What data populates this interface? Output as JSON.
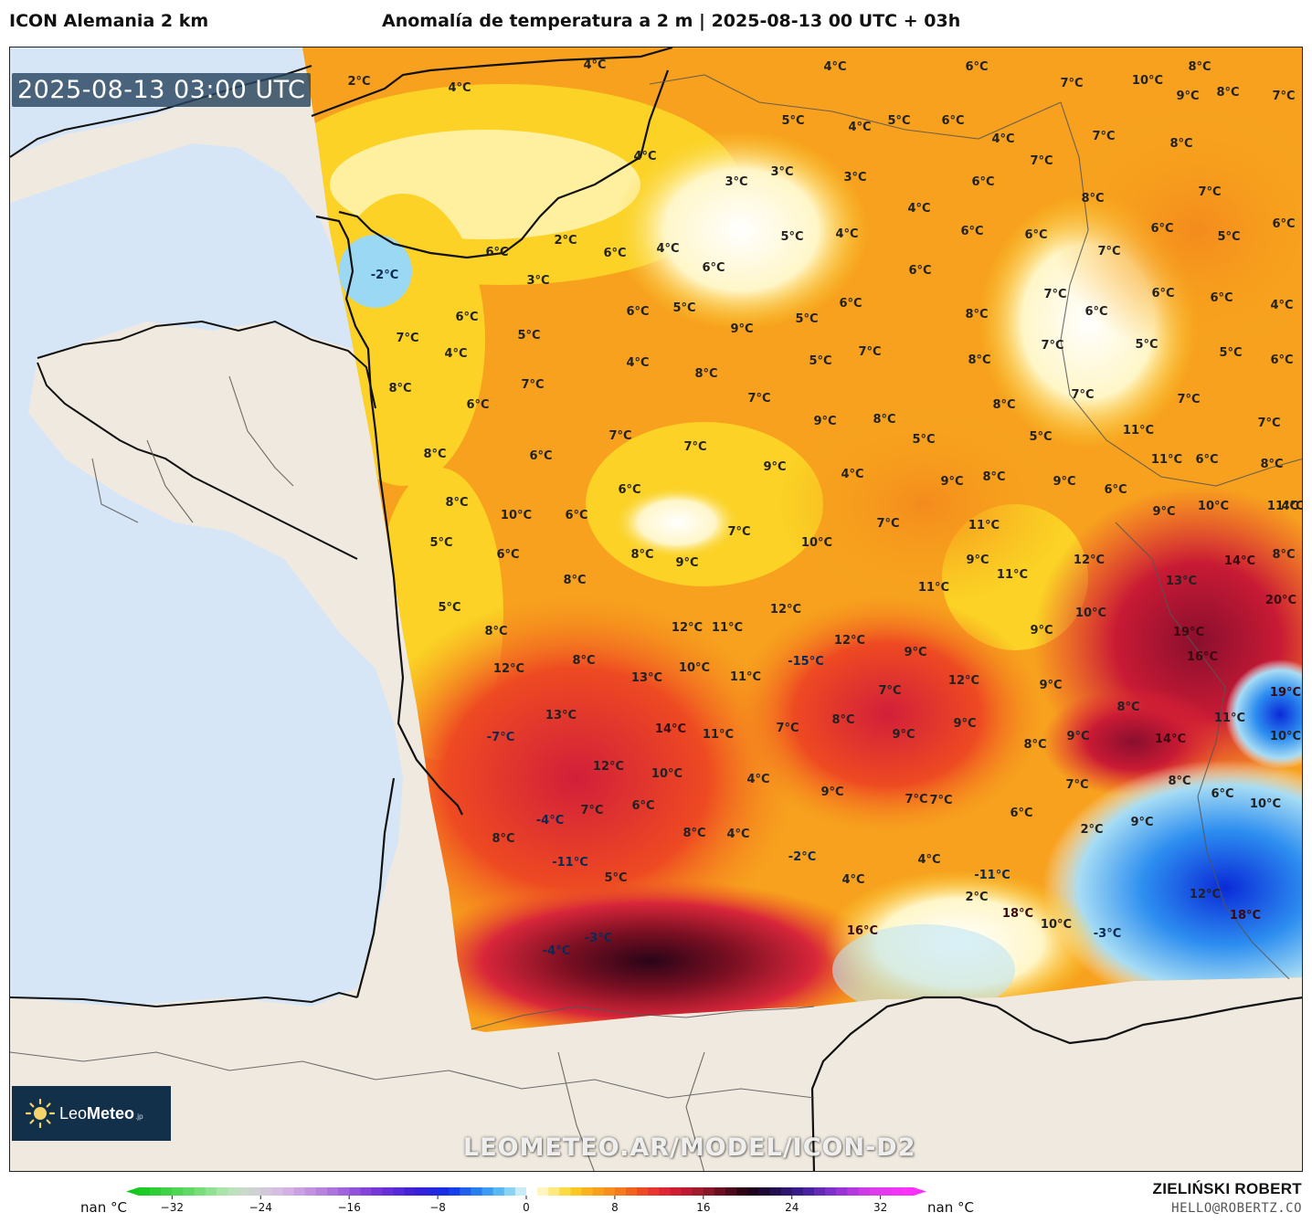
{
  "header": {
    "model_name": "ICON Alemania 2 km",
    "title": "Anomalía de temperatura a 2 m | 2025-08-13 00 UTC + 03h"
  },
  "map": {
    "valid_time": "2025-08-13 03:00 UTC",
    "watermark": "LEOMETEO.AR/MODEL/ICON-D2",
    "colors": {
      "sea": "#d6e6f7",
      "land_outside": "#efe9df",
      "coast": "#111111",
      "border": "#555555"
    },
    "labels": [
      {
        "text": "4°C",
        "t": 4
      },
      {
        "text": "4°C",
        "t": 4
      },
      {
        "text": "2°C",
        "t": 2
      },
      {
        "text": "4°C",
        "t": 4
      },
      {
        "text": "6°C",
        "t": 6
      },
      {
        "text": "8°C",
        "t": 8
      },
      {
        "text": "7°C",
        "t": 7
      },
      {
        "text": "10°C",
        "t": 10
      },
      {
        "text": "9°C",
        "t": 9
      },
      {
        "text": "8°C",
        "t": 8
      },
      {
        "text": "7°C",
        "t": 7
      },
      {
        "text": "5°C",
        "t": 5
      },
      {
        "text": "5°C",
        "t": 5
      },
      {
        "text": "4°C",
        "t": 4
      },
      {
        "text": "6°C",
        "t": 6
      },
      {
        "text": "4°C",
        "t": 4
      },
      {
        "text": "7°C",
        "t": 7
      },
      {
        "text": "8°C",
        "t": 8
      },
      {
        "text": "7°C",
        "t": 7
      },
      {
        "text": "4°C",
        "t": 4
      },
      {
        "text": "3°C",
        "t": 3
      },
      {
        "text": "3°C",
        "t": 3
      },
      {
        "text": "3°C",
        "t": 3
      },
      {
        "text": "6°C",
        "t": 6
      },
      {
        "text": "4°C",
        "t": 4
      },
      {
        "text": "8°C",
        "t": 8
      },
      {
        "text": "7°C",
        "t": 7
      },
      {
        "text": "6°C",
        "t": 6
      },
      {
        "text": "6°C",
        "t": 6
      },
      {
        "text": "-2°C",
        "t": -2
      },
      {
        "text": "6°C",
        "t": 6
      },
      {
        "text": "2°C",
        "t": 2
      },
      {
        "text": "3°C",
        "t": 3
      },
      {
        "text": "6°C",
        "t": 6
      },
      {
        "text": "4°C",
        "t": 4
      },
      {
        "text": "6°C",
        "t": 6
      },
      {
        "text": "5°C",
        "t": 5
      },
      {
        "text": "4°C",
        "t": 4
      },
      {
        "text": "6°C",
        "t": 6
      },
      {
        "text": "6°C",
        "t": 6
      },
      {
        "text": "6°C",
        "t": 6
      },
      {
        "text": "5°C",
        "t": 5
      },
      {
        "text": "7°C",
        "t": 7
      },
      {
        "text": "6°C",
        "t": 6
      },
      {
        "text": "5°C",
        "t": 5
      },
      {
        "text": "6°C",
        "t": 6
      },
      {
        "text": "9°C",
        "t": 9
      },
      {
        "text": "5°C",
        "t": 5
      },
      {
        "text": "6°C",
        "t": 6
      },
      {
        "text": "5°C",
        "t": 5
      },
      {
        "text": "7°C",
        "t": 7
      },
      {
        "text": "7°C",
        "t": 7
      },
      {
        "text": "6°C",
        "t": 6
      },
      {
        "text": "6°C",
        "t": 6
      },
      {
        "text": "4°C",
        "t": 4
      },
      {
        "text": "8°C",
        "t": 8
      },
      {
        "text": "6°C",
        "t": 6
      },
      {
        "text": "5°C",
        "t": 5
      },
      {
        "text": "7°C",
        "t": 7
      },
      {
        "text": "4°C",
        "t": 4
      },
      {
        "text": "5°C",
        "t": 5
      },
      {
        "text": "8°C",
        "t": 8
      },
      {
        "text": "8°C",
        "t": 8
      },
      {
        "text": "7°C",
        "t": 7
      },
      {
        "text": "5°C",
        "t": 5
      },
      {
        "text": "7°C",
        "t": 7
      },
      {
        "text": "4°C",
        "t": 4
      },
      {
        "text": "6°C",
        "t": 6
      },
      {
        "text": "8°C",
        "t": 8
      },
      {
        "text": "7°C",
        "t": 7
      },
      {
        "text": "7°C",
        "t": 7
      },
      {
        "text": "7°C",
        "t": 7
      },
      {
        "text": "6°C",
        "t": 6
      },
      {
        "text": "8°C",
        "t": 8
      },
      {
        "text": "9°C",
        "t": 9
      },
      {
        "text": "8°C",
        "t": 8
      },
      {
        "text": "7°C",
        "t": 7
      },
      {
        "text": "11°C",
        "t": 11
      },
      {
        "text": "5°C",
        "t": 5
      },
      {
        "text": "8°C",
        "t": 8
      },
      {
        "text": "6°C",
        "t": 6
      },
      {
        "text": "5°C",
        "t": 5
      },
      {
        "text": "9°C",
        "t": 9
      },
      {
        "text": "7°C",
        "t": 7
      },
      {
        "text": "9°C",
        "t": 9
      },
      {
        "text": "4°C",
        "t": 4
      },
      {
        "text": "8°C",
        "t": 8
      },
      {
        "text": "9°C",
        "t": 9
      },
      {
        "text": "7°C",
        "t": 7
      },
      {
        "text": "6°C",
        "t": 6
      },
      {
        "text": "6°C",
        "t": 6
      },
      {
        "text": "8°C",
        "t": 8
      },
      {
        "text": "8°C",
        "t": 8
      },
      {
        "text": "10°C",
        "t": 10
      },
      {
        "text": "6°C",
        "t": 6
      },
      {
        "text": "11°C",
        "t": 11
      },
      {
        "text": "6°C",
        "t": 6
      },
      {
        "text": "7°C",
        "t": 7
      },
      {
        "text": "7°C",
        "t": 7
      },
      {
        "text": "9°C",
        "t": 9
      },
      {
        "text": "9°C",
        "t": 9
      },
      {
        "text": "10°C",
        "t": 10
      },
      {
        "text": "4°C",
        "t": 4
      },
      {
        "text": "10°C",
        "t": 10
      },
      {
        "text": "12°C",
        "t": 12
      },
      {
        "text": "14°C",
        "t": 14
      },
      {
        "text": "8°C",
        "t": 8
      },
      {
        "text": "11°C",
        "t": 11
      },
      {
        "text": "13°C",
        "t": 13
      },
      {
        "text": "5°C",
        "t": 5
      },
      {
        "text": "11°C",
        "t": 11
      },
      {
        "text": "10°C",
        "t": 10
      },
      {
        "text": "20°C",
        "t": 20
      },
      {
        "text": "6°C",
        "t": 6
      },
      {
        "text": "8°C",
        "t": 8
      },
      {
        "text": "11°C",
        "t": 11
      },
      {
        "text": "9°C",
        "t": 9
      },
      {
        "text": "19°C",
        "t": 19
      },
      {
        "text": "11°C",
        "t": 11
      },
      {
        "text": "8°C",
        "t": 8
      },
      {
        "text": "12°C",
        "t": 12
      },
      {
        "text": "16°C",
        "t": 16
      },
      {
        "text": "5°C",
        "t": 5
      },
      {
        "text": "8°C",
        "t": 8
      },
      {
        "text": "11°C",
        "t": 11
      },
      {
        "text": "9°C",
        "t": 9
      },
      {
        "text": "9°C",
        "t": 9
      },
      {
        "text": "12°C",
        "t": 12
      },
      {
        "text": "12°C",
        "t": 12
      },
      {
        "text": "8°C",
        "t": 8
      },
      {
        "text": "-15°C",
        "t": -15
      },
      {
        "text": "12°C",
        "t": 12
      },
      {
        "text": "19°C",
        "t": 19
      },
      {
        "text": "8°C",
        "t": 8
      },
      {
        "text": "12°C",
        "t": 12
      },
      {
        "text": "9°C",
        "t": 9
      },
      {
        "text": "7°C",
        "t": 7
      },
      {
        "text": "9°C",
        "t": 9
      },
      {
        "text": "13°C",
        "t": 13
      },
      {
        "text": "14°C",
        "t": 14
      },
      {
        "text": "11°C",
        "t": 11
      },
      {
        "text": "10°C",
        "t": 10
      },
      {
        "text": "11°C",
        "t": 11
      },
      {
        "text": "14°C",
        "t": 14
      },
      {
        "text": "-7°C",
        "t": -7
      },
      {
        "text": "8°C",
        "t": 8
      },
      {
        "text": "7°C",
        "t": 7
      },
      {
        "text": "8°C",
        "t": 8
      },
      {
        "text": "13°C",
        "t": 13
      },
      {
        "text": "9°C",
        "t": 9
      },
      {
        "text": "10°C",
        "t": 10
      },
      {
        "text": "12°C",
        "t": 12
      },
      {
        "text": "11°C",
        "t": 11
      },
      {
        "text": "7°C",
        "t": 7
      },
      {
        "text": "9°C",
        "t": 9
      },
      {
        "text": "8°C",
        "t": 8
      },
      {
        "text": "9°C",
        "t": 9
      },
      {
        "text": "6°C",
        "t": 6
      },
      {
        "text": "10°C",
        "t": 10
      },
      {
        "text": "10°C",
        "t": 10
      },
      {
        "text": "4°C",
        "t": 4
      },
      {
        "text": "7°C",
        "t": 7
      },
      {
        "text": "-4°C",
        "t": -4
      },
      {
        "text": "8°C",
        "t": 8
      },
      {
        "text": "7°C",
        "t": 7
      },
      {
        "text": "6°C",
        "t": 6
      },
      {
        "text": "6°C",
        "t": 6
      },
      {
        "text": "8°C",
        "t": 8
      },
      {
        "text": "4°C",
        "t": 4
      },
      {
        "text": "2°C",
        "t": 2
      },
      {
        "text": "9°C",
        "t": 9
      },
      {
        "text": "7°C",
        "t": 7
      },
      {
        "text": "-2°C",
        "t": -2
      },
      {
        "text": "4°C",
        "t": 4
      },
      {
        "text": "-11°C",
        "t": -11
      },
      {
        "text": "-11°C",
        "t": -11
      },
      {
        "text": "5°C",
        "t": 5
      },
      {
        "text": "4°C",
        "t": 4
      },
      {
        "text": "2°C",
        "t": 2
      },
      {
        "text": "18°C",
        "t": 18
      },
      {
        "text": "12°C",
        "t": 12
      },
      {
        "text": "18°C",
        "t": 18
      },
      {
        "text": "16°C",
        "t": 16
      },
      {
        "text": "10°C",
        "t": 10
      },
      {
        "text": "-3°C",
        "t": -3
      },
      {
        "text": "-3°C",
        "t": -3
      },
      {
        "text": "-4°C",
        "t": -4
      }
    ]
  },
  "logo": {
    "name_light": "Leo",
    "name_bold": "Meteo",
    "tld": ".jp",
    "sun_color": "#f3d36b"
  },
  "colorbar": {
    "nan_left": "nan °C",
    "nan_right": "nan °C",
    "ticks": [
      {
        "label": "−32",
        "value": -32
      },
      {
        "label": "−24",
        "value": -24
      },
      {
        "label": "−16",
        "value": -16
      },
      {
        "label": "−8",
        "value": -8
      },
      {
        "label": "0",
        "value": 0
      },
      {
        "label": "8",
        "value": 8
      },
      {
        "label": "16",
        "value": 16
      },
      {
        "label": "24",
        "value": 24
      },
      {
        "label": "32",
        "value": 32
      }
    ],
    "min": -35,
    "max": 35,
    "stops": [
      {
        "v": -35,
        "c": "#14c81e"
      },
      {
        "v": -30,
        "c": "#6adb6f"
      },
      {
        "v": -27,
        "c": "#b6e6b4"
      },
      {
        "v": -25,
        "c": "#cfd6cf"
      },
      {
        "v": -22,
        "c": "#d7b9e6"
      },
      {
        "v": -18,
        "c": "#b37bdd"
      },
      {
        "v": -14,
        "c": "#7e3bd8"
      },
      {
        "v": -10,
        "c": "#3a1ed6"
      },
      {
        "v": -7,
        "c": "#1030e8"
      },
      {
        "v": -4,
        "c": "#2d8ef0"
      },
      {
        "v": -2,
        "c": "#68c5f2"
      },
      {
        "v": -0.5,
        "c": "#c8ecf6"
      },
      {
        "v": 0.5,
        "c": "#ffffff"
      },
      {
        "v": 2,
        "c": "#fff0a0"
      },
      {
        "v": 4,
        "c": "#fbd225"
      },
      {
        "v": 6,
        "c": "#f9a91c"
      },
      {
        "v": 8,
        "c": "#f6851d"
      },
      {
        "v": 10,
        "c": "#f0561f"
      },
      {
        "v": 12,
        "c": "#e52a35"
      },
      {
        "v": 14,
        "c": "#c81a34"
      },
      {
        "v": 16,
        "c": "#951a2a"
      },
      {
        "v": 18,
        "c": "#5c0a1e"
      },
      {
        "v": 20,
        "c": "#200010"
      },
      {
        "v": 22,
        "c": "#1c0c40"
      },
      {
        "v": 25,
        "c": "#3b1f95"
      },
      {
        "v": 28,
        "c": "#8c33d5"
      },
      {
        "v": 31,
        "c": "#d93ce8"
      },
      {
        "v": 35,
        "c": "#ff30ff"
      }
    ]
  },
  "author": {
    "name": "ZIELIŃSKI ROBERT",
    "email": "HELLO@ROBERTZ.CO"
  }
}
